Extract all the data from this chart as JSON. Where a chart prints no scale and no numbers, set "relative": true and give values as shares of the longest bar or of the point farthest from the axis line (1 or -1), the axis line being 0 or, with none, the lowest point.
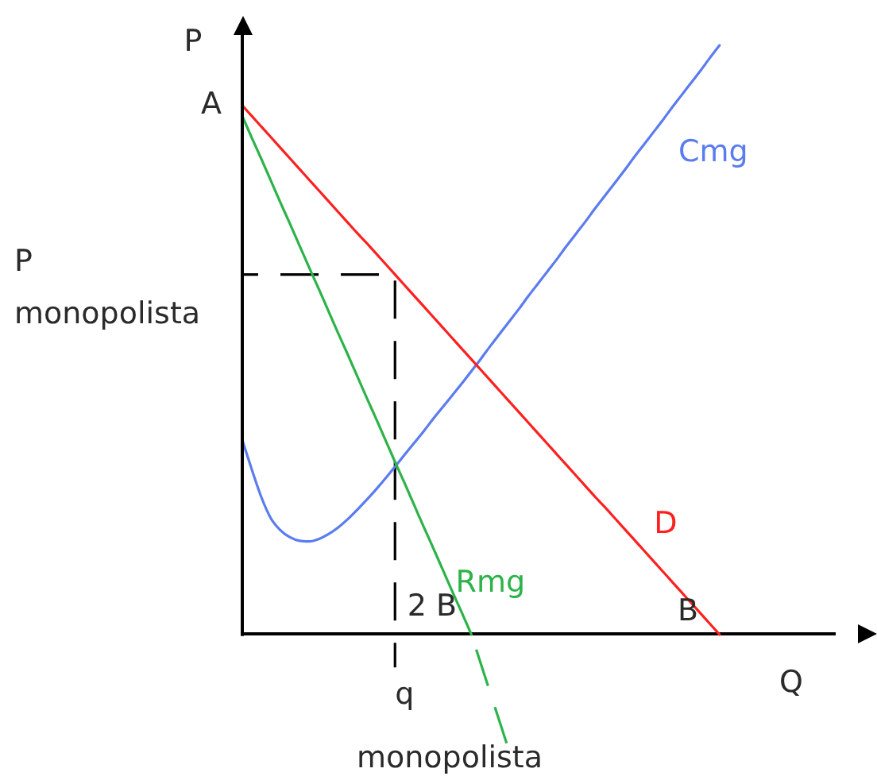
{
  "chart_data": {
    "type": "line",
    "relative": true,
    "xlabel": "Q",
    "ylabel": "P",
    "marker": "none",
    "categories": [
      null,
      null,
      null,
      null,
      null,
      null,
      null,
      null,
      null,
      null,
      null,
      null,
      null,
      null,
      null,
      null,
      null,
      null,
      null,
      null,
      null,
      null,
      null,
      null,
      null,
      null,
      null,
      null,
      null,
      null,
      null,
      null,
      null,
      null,
      null,
      null,
      null,
      null,
      null,
      null,
      null,
      null,
      null,
      null,
      null,
      null,
      null,
      null,
      null,
      null,
      null,
      null,
      null,
      null,
      null,
      null,
      null,
      null,
      null,
      null,
      null,
      null,
      null
    ],
    "series": [
      {
        "name": "D",
        "color": "#ff2020",
        "values": [
          0.898,
          0.88,
          0.862,
          0.844,
          0.826,
          0.808,
          0.79,
          0.772,
          0.754,
          0.736,
          0.718,
          0.7,
          0.682,
          0.665,
          0.647,
          0.629,
          0.611,
          0.593,
          0.575,
          0.557,
          0.539,
          0.521,
          0.503,
          0.485,
          0.467,
          0.449,
          0.431,
          0.413,
          0.395,
          0.377,
          0.359,
          0.341,
          0.323,
          0.305,
          0.287,
          0.269,
          0.251,
          0.233,
          0.216,
          0.198,
          0.18,
          0.162,
          0.144,
          0.126,
          0.108,
          0.09,
          0.072,
          0.054,
          0.036,
          0.018,
          0,
          null,
          null,
          null,
          null,
          null,
          null,
          null,
          null,
          null,
          null,
          null,
          null
        ]
      },
      {
        "name": "Rmg",
        "color": "#2db34a",
        "values": [
          0.88,
          0.843,
          0.807,
          0.77,
          0.733,
          0.697,
          0.66,
          0.623,
          0.587,
          0.55,
          0.513,
          0.477,
          0.44,
          0.403,
          0.367,
          0.33,
          0.293,
          0.257,
          0.22,
          0.183,
          0.147,
          0.11,
          0.073,
          0.037,
          0,
          null,
          null,
          null,
          null,
          null,
          null,
          null,
          null,
          null,
          null,
          null,
          null,
          null,
          null,
          null,
          null,
          null,
          null,
          null,
          null,
          null,
          null,
          null,
          null,
          null,
          null,
          null,
          null,
          null,
          null,
          null,
          null,
          null,
          null,
          null,
          null,
          null,
          null
        ]
      },
      {
        "color": "#2db34a",
        "line_style": "dashed",
        "values": [
          null,
          null,
          null,
          null,
          null,
          null,
          null,
          null,
          null,
          null,
          null,
          null,
          null,
          null,
          null,
          null,
          null,
          null,
          null,
          null,
          null,
          null,
          null,
          null,
          0,
          -0.05,
          -0.1,
          -0.15,
          -0.2,
          null,
          null,
          null,
          null,
          null,
          null,
          null,
          null,
          null,
          null,
          null,
          null,
          null,
          null,
          null,
          null,
          null,
          null,
          null,
          null,
          null,
          null,
          null,
          null,
          null,
          null,
          null,
          null,
          null,
          null,
          null,
          null,
          null,
          null
        ]
      },
      {
        "name": "Cmg",
        "color": "#5b7cf0",
        "values": [
          0.33,
          0.28,
          0.233,
          0.197,
          0.177,
          0.165,
          0.159,
          0.158,
          0.162,
          0.17,
          0.181,
          0.195,
          0.211,
          0.228,
          0.246,
          0.265,
          0.285,
          0.305,
          0.325,
          0.345,
          0.366,
          0.386,
          0.406,
          0.426,
          0.447,
          0.468,
          0.49,
          0.511,
          0.532,
          0.553,
          0.575,
          0.596,
          0.617,
          0.638,
          0.66,
          0.681,
          0.702,
          0.724,
          0.745,
          0.766,
          0.787,
          0.809,
          0.83,
          0.851,
          0.872,
          0.894,
          0.915,
          0.936,
          0.957,
          0.979,
          1.0,
          null,
          null,
          null,
          null,
          null,
          null,
          null,
          null,
          null,
          null,
          null,
          null
        ]
      },
      {
        "type": "step",
        "color": "#000000",
        "line_style": "dashed",
        "values": [
          0.611,
          0.611,
          0.611,
          0.611,
          0.611,
          0.611,
          0.611,
          0.611,
          0.611,
          0.611,
          0.611,
          0.611,
          0.611,
          0.611,
          0.611,
          0.611,
          -0.056,
          null,
          null,
          null,
          null,
          null,
          null,
          null,
          null,
          null,
          null,
          null,
          null,
          null,
          null,
          null,
          null,
          null,
          null,
          null,
          null,
          null,
          null,
          null,
          null,
          null,
          null,
          null,
          null,
          null,
          null,
          null,
          null,
          null,
          null,
          null,
          null,
          null,
          null,
          null,
          null,
          null,
          null,
          null,
          null,
          null,
          null
        ]
      }
    ],
    "annotations": [
      "A",
      "P\nmonopolista",
      "q\nmonopolista",
      "2 B",
      "B"
    ]
  }
}
